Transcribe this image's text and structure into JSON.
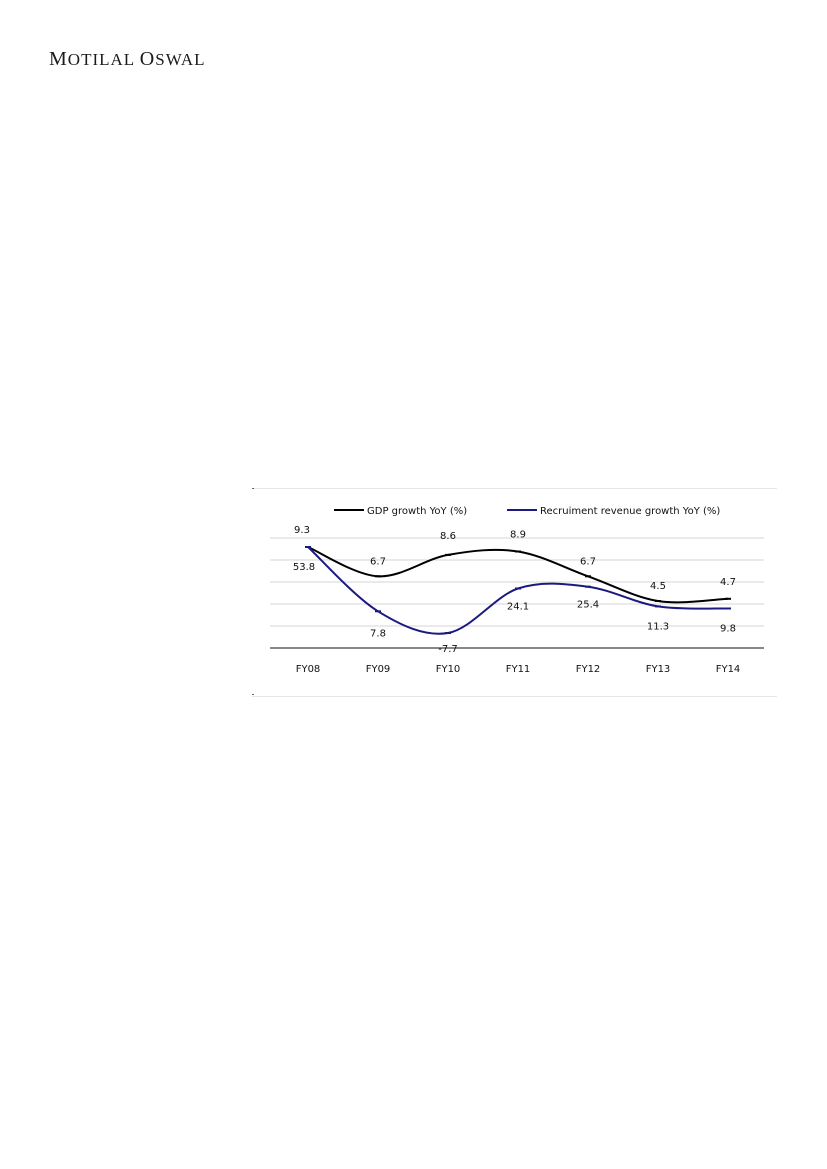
{
  "header": {
    "brand_first": "M",
    "brand_rest1": "OTILAL ",
    "brand_first2": "O",
    "brand_rest2": "SWAL"
  },
  "chart_data": {
    "type": "line",
    "categories": [
      "FY08",
      "FY09",
      "FY10",
      "FY11",
      "FY12",
      "FY13",
      "FY14"
    ],
    "series": [
      {
        "name": "GDP growth YoY (%)",
        "values": [
          9.3,
          6.7,
          8.6,
          8.9,
          6.7,
          4.5,
          4.7
        ],
        "labels": [
          "9.3",
          "6.7",
          "8.6",
          "8.9",
          "6.7",
          "4.5",
          "4.7"
        ],
        "color": "#000000"
      },
      {
        "name": "Recruiment revenue growth YoY (%)",
        "values": [
          53.8,
          7.8,
          -7.7,
          24.1,
          25.4,
          11.3,
          9.8
        ],
        "labels": [
          "53.8",
          "7.8",
          "-7.7",
          "24.1",
          "25.4",
          "11.3",
          "9.8"
        ],
        "color": "#1a1a80"
      }
    ],
    "legend_position": "top",
    "grid": true,
    "smooth": true
  }
}
